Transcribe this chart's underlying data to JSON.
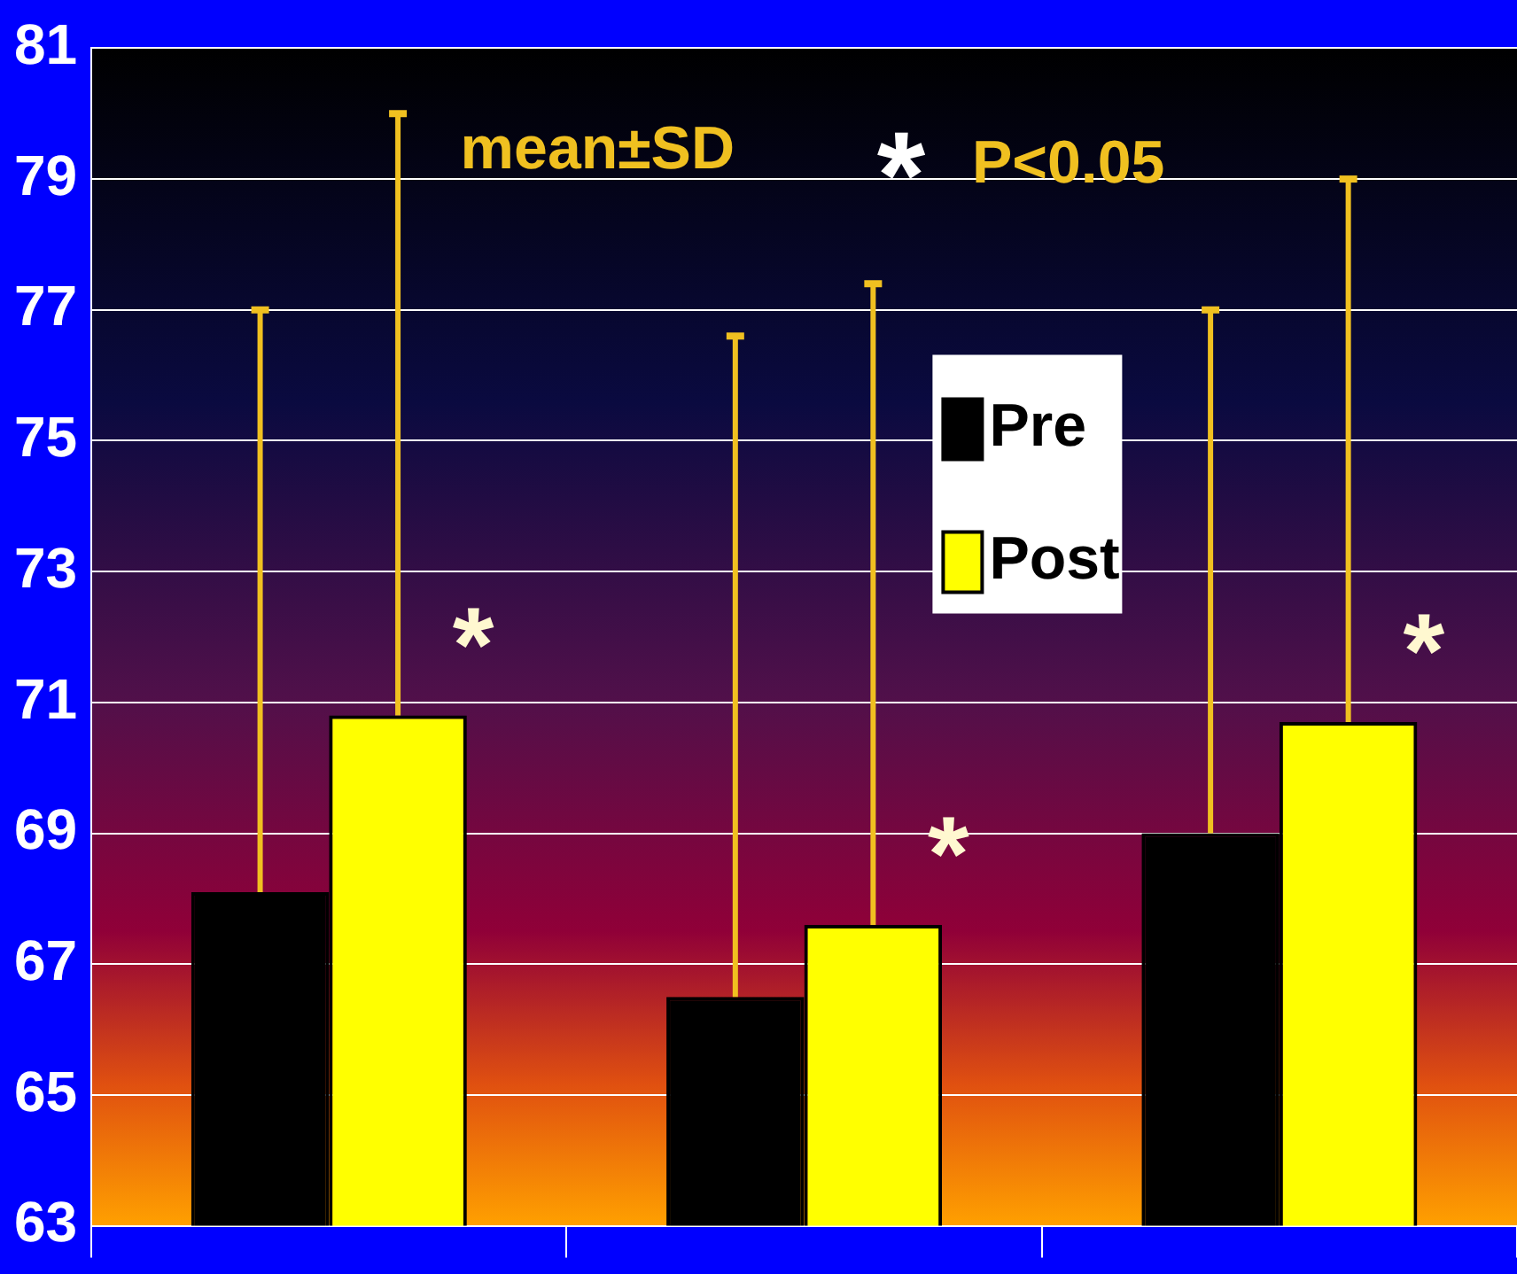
{
  "chart_data": {
    "type": "bar",
    "categories": [
      null,
      null,
      null
    ],
    "series": [
      {
        "name": "Pre",
        "color": "#000000",
        "values": [
          68.1,
          66.5,
          69.0
        ],
        "errors": [
          [
            68.1,
            77.0
          ],
          [
            66.5,
            76.6
          ],
          [
            69.0,
            77.0
          ]
        ]
      },
      {
        "name": "Post",
        "color": "#ffff00",
        "values": [
          70.8,
          67.6,
          70.7
        ],
        "errors": [
          [
            70.8,
            80.0
          ],
          [
            67.6,
            77.4
          ],
          [
            70.7,
            79.0
          ]
        ],
        "value_labels": [
          "*",
          "*",
          "*"
        ]
      }
    ],
    "ylim": [
      63,
      81
    ],
    "yticks": [
      63,
      65,
      67,
      69,
      71,
      73,
      75,
      77,
      79,
      81
    ],
    "grid": "y",
    "legend": "top right",
    "annotations": [
      "mean±SD",
      "* P<0.05"
    ]
  }
}
